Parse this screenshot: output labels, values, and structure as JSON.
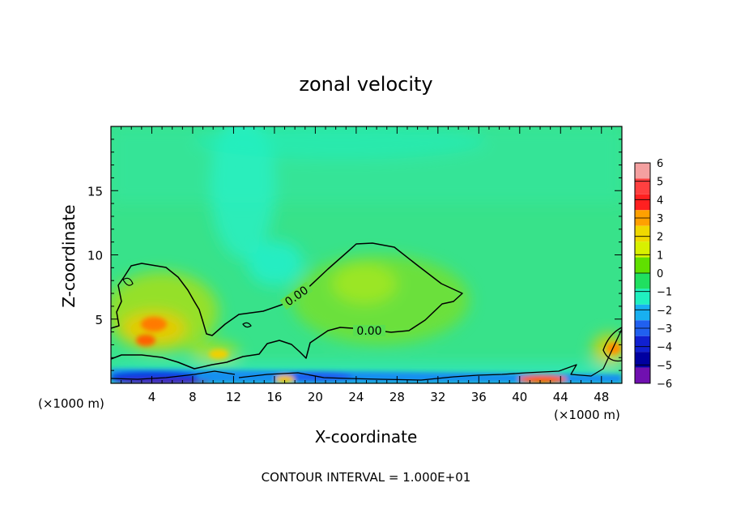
{
  "chart_data": {
    "type": "heatmap",
    "title": "zonal velocity",
    "xlabel": "X-coordinate",
    "ylabel": "Z-coordinate",
    "x_unit_left": "(×1000 m)",
    "x_unit_right": "(×1000 m)",
    "footer": "CONTOUR INTERVAL = 1.000E+01",
    "xlim": [
      0,
      50
    ],
    "ylim": [
      0,
      20
    ],
    "x_ticks": [
      4,
      8,
      12,
      16,
      20,
      24,
      28,
      32,
      36,
      40,
      44,
      48
    ],
    "x_tick_labels": [
      "4",
      "8",
      "12",
      "16",
      "20",
      "24",
      "28",
      "32",
      "36",
      "40",
      "44",
      "48"
    ],
    "y_ticks": [
      5,
      10,
      15
    ],
    "y_tick_labels": [
      "5",
      "10",
      "15"
    ],
    "contour_labels": [
      "0.00",
      "0.00"
    ],
    "colorbar": {
      "levels": [
        6,
        5,
        4,
        3,
        2,
        1,
        0,
        -1,
        -2,
        -3,
        -4,
        -5,
        -6
      ],
      "labels": [
        "6",
        "5",
        "4",
        "3",
        "2",
        "1",
        "0",
        "−1",
        "−2",
        "−3",
        "−4",
        "−5",
        "−6"
      ],
      "colors": [
        "#f4a0a0",
        "#ff4040",
        "#ff2020",
        "#ffa000",
        "#f0d800",
        "#d8f000",
        "#60e000",
        "#20e060",
        "#20f0c0",
        "#18b0f0",
        "#2060f0",
        "#1020d0",
        "#0000a0",
        "#7010b0"
      ]
    }
  }
}
